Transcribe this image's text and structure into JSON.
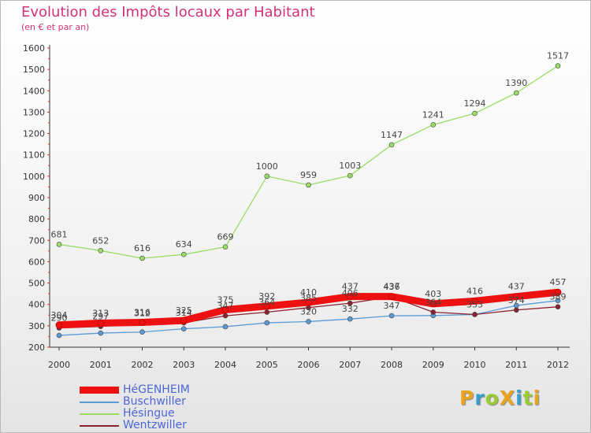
{
  "header": {
    "title": "Evolution des Impôts locaux par Habitant",
    "subtitle": "(en € et par an)"
  },
  "brand": {
    "text": "ProXiti",
    "colors": [
      "#e8a41f",
      "#35a0d0",
      "#9acd32",
      "#e8a41f",
      "#35a0d0",
      "#9acd32",
      "#e8a41f"
    ]
  },
  "chart_data": {
    "type": "line",
    "title": "Evolution des Impôts locaux par Habitant",
    "subtitle": "(en € et par an)",
    "x": [
      "2000",
      "2001",
      "2002",
      "2003",
      "2004",
      "2005",
      "2006",
      "2007",
      "2008",
      "2009",
      "2010",
      "2011",
      "2012"
    ],
    "ylim": [
      200,
      1600
    ],
    "yticks": [
      200,
      300,
      400,
      500,
      600,
      700,
      800,
      900,
      1000,
      1100,
      1200,
      1300,
      1400,
      1500,
      1600
    ],
    "grid": false,
    "legend_position": "bottom-left",
    "series": [
      {
        "name": "HéGENHEIM",
        "color": "#ee1111",
        "values": [
          304,
          313,
          316,
          325,
          375,
          392,
          410,
          437,
          437,
          403,
          416,
          437,
          457
        ]
      },
      {
        "name": "Buschwiller",
        "color": "#5b9bd5",
        "values": [
          255,
          266,
          271,
          286,
          296,
          314,
          320,
          332,
          347,
          348,
          353,
          395,
          418
        ]
      },
      {
        "name": "Hésingue",
        "color": "#99dd66",
        "values": [
          681,
          652,
          616,
          634,
          669,
          1000,
          959,
          1003,
          1147,
          1241,
          1294,
          1390,
          1517
        ]
      },
      {
        "name": "Wentzwiller",
        "color": "#8b2232",
        "values": [
          290,
          297,
          312,
          314,
          347,
          364,
          385,
          406,
          436,
          364,
          353,
          374,
          389
        ]
      }
    ],
    "point_labels": [
      {
        "series": 0,
        "values": [
          "304",
          "313",
          "316",
          "325",
          "375",
          "392",
          "410",
          "437",
          "437",
          "403",
          "416",
          "437",
          "457"
        ]
      },
      {
        "series": 1,
        "values": [
          "",
          "",
          "",
          "",
          "",
          "",
          "320",
          "332",
          "347",
          "",
          "",
          "",
          ""
        ]
      },
      {
        "series": 2,
        "values": [
          "681",
          "652",
          "616",
          "634",
          "669",
          "1000",
          "959",
          "1003",
          "1147",
          "1241",
          "1294",
          "1390",
          "1517"
        ]
      },
      {
        "series": 3,
        "values": [
          "290",
          "297",
          "312",
          "314",
          "347",
          "364",
          "385",
          "406",
          "436",
          "364",
          "353",
          "374",
          "389"
        ]
      }
    ]
  }
}
